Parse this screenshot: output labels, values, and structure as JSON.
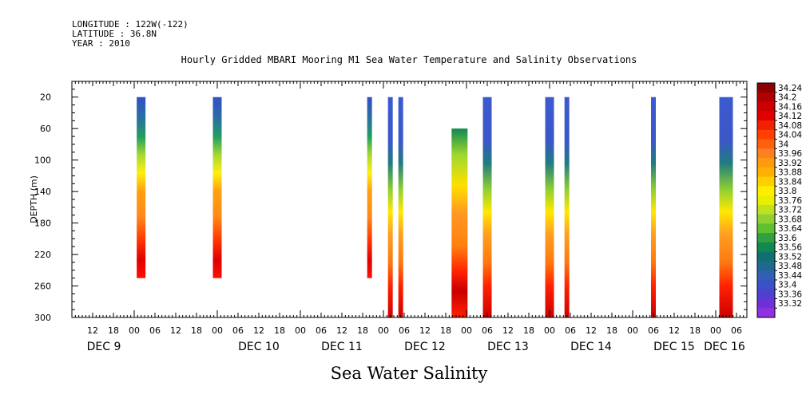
{
  "meta": {
    "longitude": "LONGITUDE : 122W(-122)",
    "latitude": "LATITUDE : 36.8N",
    "year": "YEAR : 2010"
  },
  "chart_data": {
    "type": "heatmap",
    "title": "Hourly Gridded MBARI Mooring M1 Sea Water Temperature and Salinity Observations",
    "xlabel": "Sea Water Salinity",
    "ylabel": "DEPTH (m)",
    "ylim": [
      300,
      0
    ],
    "y_ticks": [
      20,
      60,
      100,
      140,
      180,
      220,
      260,
      300
    ],
    "x_hour_labels": [
      "12",
      "18",
      "00",
      "06",
      "12",
      "18",
      "00",
      "06",
      "12",
      "18",
      "00",
      "06",
      "12",
      "18",
      "00",
      "06",
      "12",
      "18",
      "00",
      "06",
      "12",
      "18",
      "00",
      "06",
      "12",
      "18",
      "00",
      "06",
      "12",
      "18",
      "00",
      "06"
    ],
    "x_date_labels": [
      "DEC  9",
      "DEC 10",
      "DEC 11",
      "DEC 12",
      "DEC 13",
      "DEC 14",
      "DEC 15",
      "DEC 16"
    ],
    "x_start": "Dec 8 2010 06:00",
    "x_end": "Dec 16 2010 09:00",
    "colorbar": {
      "labels": [
        "34.24",
        "34.2",
        "34.16",
        "34.12",
        "34.08",
        "34.04",
        "34",
        "33.96",
        "33.92",
        "33.88",
        "33.84",
        "33.8",
        "33.76",
        "33.72",
        "33.68",
        "33.64",
        "33.6",
        "33.56",
        "33.52",
        "33.48",
        "33.44",
        "33.4",
        "33.36",
        "33.32"
      ],
      "colors": [
        "#8b0000",
        "#b00000",
        "#cc0000",
        "#e00000",
        "#f22000",
        "#ff4000",
        "#ff6010",
        "#ff8020",
        "#ff9a10",
        "#ffb000",
        "#ffd000",
        "#ffee00",
        "#e8f000",
        "#c0e020",
        "#90d030",
        "#60c030",
        "#30a040",
        "#108850",
        "#107070",
        "#206890",
        "#3060b0",
        "#3c50c8",
        "#5040d0",
        "#7030d8",
        "#9030e0"
      ]
    },
    "columns": [
      {
        "time": "Dec 9 2010 02:00",
        "depth_top": 20,
        "depth_bottom": 250
      },
      {
        "time": "Dec 10 2010 00:00",
        "depth_top": 20,
        "depth_bottom": 250
      },
      {
        "time": "Dec 11 2010 20:00",
        "depth_top": 20,
        "depth_bottom": 250
      },
      {
        "time": "Dec 12 2010 02:00",
        "depth_top": 20,
        "depth_bottom": 300
      },
      {
        "time": "Dec 12 2010 05:00",
        "depth_top": 20,
        "depth_bottom": 300
      },
      {
        "time": "Dec 12 2010 22:00",
        "depth_top": 60,
        "depth_bottom": 300
      },
      {
        "time": "Dec 13 2010 06:00",
        "depth_top": 20,
        "depth_bottom": 300
      },
      {
        "time": "Dec 14 2010 00:00",
        "depth_top": 20,
        "depth_bottom": 300
      },
      {
        "time": "Dec 14 2010 05:00",
        "depth_top": 20,
        "depth_bottom": 300
      },
      {
        "time": "Dec 15 2010 06:00",
        "depth_top": 20,
        "depth_bottom": 300
      },
      {
        "time": "Dec 16 2010 03:00",
        "depth_top": 20,
        "depth_bottom": 300
      }
    ]
  }
}
